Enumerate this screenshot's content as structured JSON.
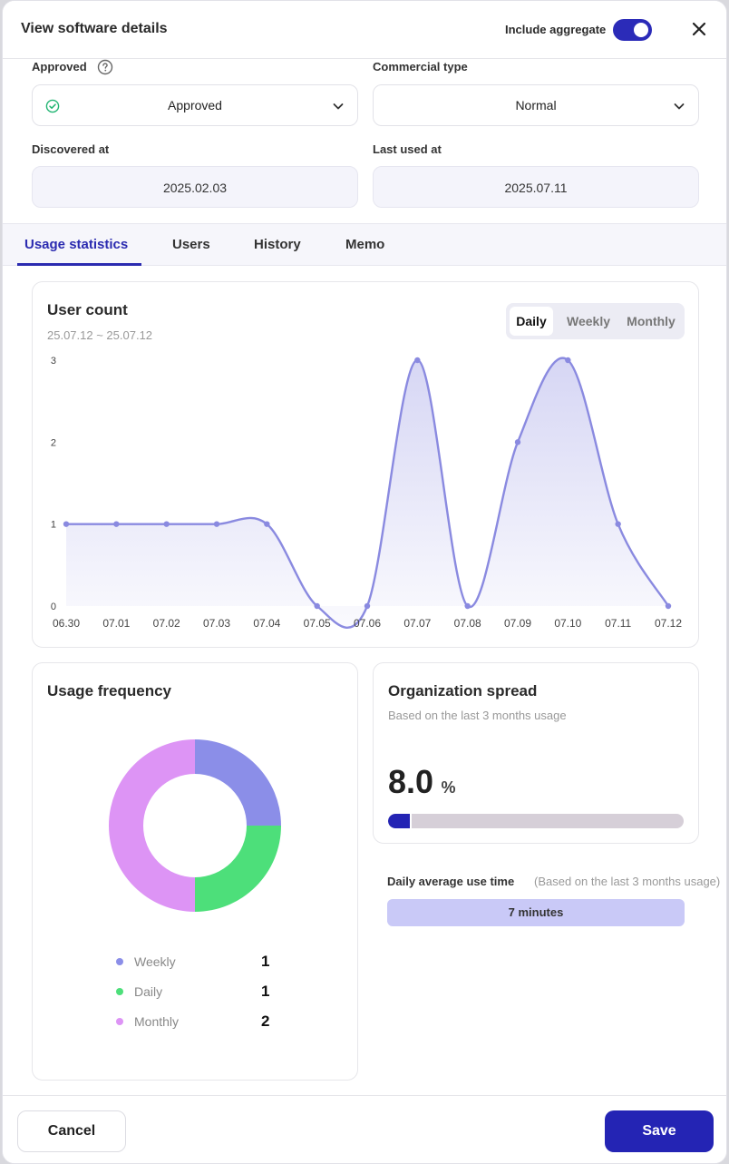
{
  "header": {
    "title": "View software details",
    "aggregate_label": "Include aggregate",
    "aggregate_on": true
  },
  "fields": {
    "approved_label": "Approved",
    "approved_value": "Approved",
    "commercial_label": "Commercial type",
    "commercial_value": "Normal",
    "discovered_label": "Discovered at",
    "discovered_value": "2025.02.03",
    "last_used_label": "Last used at",
    "last_used_value": "2025.07.11"
  },
  "tabs": [
    {
      "label": "Usage statistics",
      "active": true
    },
    {
      "label": "Users",
      "active": false
    },
    {
      "label": "History",
      "active": false
    },
    {
      "label": "Memo",
      "active": false
    }
  ],
  "user_count": {
    "title": "User count",
    "range": "25.07.12 ~ 25.07.12",
    "periods": [
      "Daily",
      "Weekly",
      "Monthly"
    ],
    "active_period": "Daily"
  },
  "chart_data": [
    {
      "type": "area",
      "title": "User count",
      "x": [
        "06.30",
        "07.01",
        "07.02",
        "07.03",
        "07.04",
        "07.05",
        "07.06",
        "07.07",
        "07.08",
        "07.09",
        "07.10",
        "07.11",
        "07.12"
      ],
      "y": [
        1,
        1,
        1,
        1,
        1,
        0,
        0,
        3,
        0,
        2,
        3,
        1,
        0
      ],
      "yticks": [
        0,
        1,
        2,
        3
      ],
      "ylim": [
        0,
        3
      ],
      "color": "#8a8ae0",
      "grid": false
    },
    {
      "type": "pie",
      "title": "Usage frequency",
      "donut": true,
      "labels": [
        "Weekly",
        "Daily",
        "Monthly"
      ],
      "values": [
        1,
        1,
        2
      ],
      "colors": [
        "#8b8ee8",
        "#4ddf7a",
        "#dd94f5"
      ]
    }
  ],
  "usage_frequency": {
    "title": "Usage frequency",
    "legend": [
      {
        "label": "Weekly",
        "value": "1",
        "color": "#8b8ee8"
      },
      {
        "label": "Daily",
        "value": "1",
        "color": "#4ddf7a"
      },
      {
        "label": "Monthly",
        "value": "2",
        "color": "#dd94f5"
      }
    ]
  },
  "org_spread": {
    "title": "Organization spread",
    "subtitle": "Based on the last 3 months usage",
    "value": "8.0",
    "unit": "%",
    "progress_fraction": 0.08
  },
  "daily_avg": {
    "label": "Daily average use time",
    "note": "(Based on the last 3 months usage)",
    "value": "7 minutes"
  },
  "footer": {
    "cancel_label": "Cancel",
    "save_label": "Save"
  },
  "colors": {
    "accent": "#2424b4",
    "line": "#8a8ae0",
    "weekly": "#8b8ee8",
    "daily": "#4ddf7a",
    "monthly": "#dd94f5"
  }
}
